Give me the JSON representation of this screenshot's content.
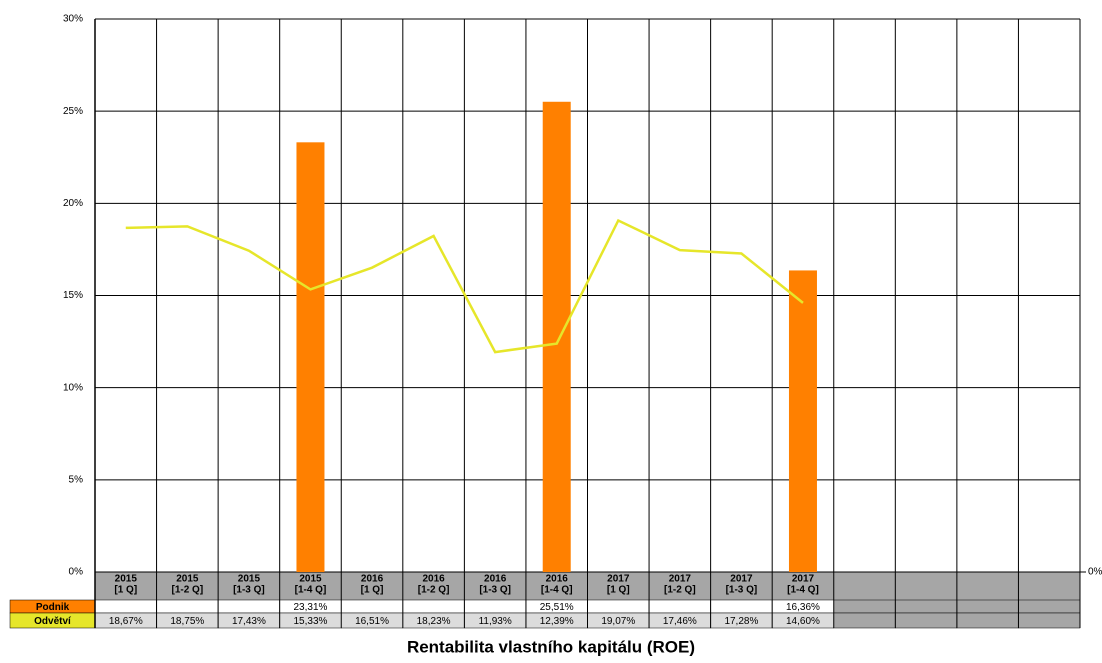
{
  "chart_data": {
    "type": "bar_line",
    "title": "Rentabilita vlastního kapitálu (ROE)",
    "categories": [
      [
        "2015",
        "[1 Q]"
      ],
      [
        "2015",
        "[1-2 Q]"
      ],
      [
        "2015",
        "[1-3 Q]"
      ],
      [
        "2015",
        "[1-4 Q]"
      ],
      [
        "2016",
        "[1 Q]"
      ],
      [
        "2016",
        "[1-2 Q]"
      ],
      [
        "2016",
        "[1-3 Q]"
      ],
      [
        "2016",
        "[1-4 Q]"
      ],
      [
        "2017",
        "[1 Q]"
      ],
      [
        "2017",
        "[1-2 Q]"
      ],
      [
        "2017",
        "[1-3 Q]"
      ],
      [
        "2017",
        "[1-4 Q]"
      ],
      null,
      null,
      null,
      null
    ],
    "series": [
      {
        "name": "Podnik",
        "type": "bar",
        "color": "#ff8000",
        "values": [
          null,
          null,
          null,
          23.31,
          null,
          null,
          null,
          25.51,
          null,
          null,
          null,
          16.36,
          null,
          null,
          null,
          null
        ],
        "value_labels": [
          null,
          null,
          null,
          "23,31%",
          null,
          null,
          null,
          "25,51%",
          null,
          null,
          null,
          "16,36%",
          null,
          null,
          null,
          null
        ]
      },
      {
        "name": "Odvětví",
        "type": "line",
        "color": "#e6e62a",
        "values": [
          18.67,
          18.75,
          17.43,
          15.33,
          16.51,
          18.23,
          11.93,
          12.39,
          19.07,
          17.46,
          17.28,
          14.6,
          null,
          null,
          null,
          null
        ],
        "value_labels": [
          "18,67%",
          "18,75%",
          "17,43%",
          "15,33%",
          "16,51%",
          "18,23%",
          "11,93%",
          "12,39%",
          "19,07%",
          "17,46%",
          "17,28%",
          "14,60%",
          null,
          null,
          null,
          null
        ]
      }
    ],
    "ylim": [
      0,
      30
    ],
    "yticks": [
      {
        "value": 0,
        "label": "0%"
      },
      {
        "value": 5,
        "label": "5%"
      },
      {
        "value": 10,
        "label": "10%"
      },
      {
        "value": 15,
        "label": "15%"
      },
      {
        "value": 20,
        "label": "20%"
      },
      {
        "value": 25,
        "label": "25%"
      },
      {
        "value": 30,
        "label": "30%"
      }
    ],
    "y2lim": [
      0,
      30
    ],
    "y2ticks": [
      {
        "value": 0,
        "label": "0%"
      }
    ],
    "grid": true
  }
}
